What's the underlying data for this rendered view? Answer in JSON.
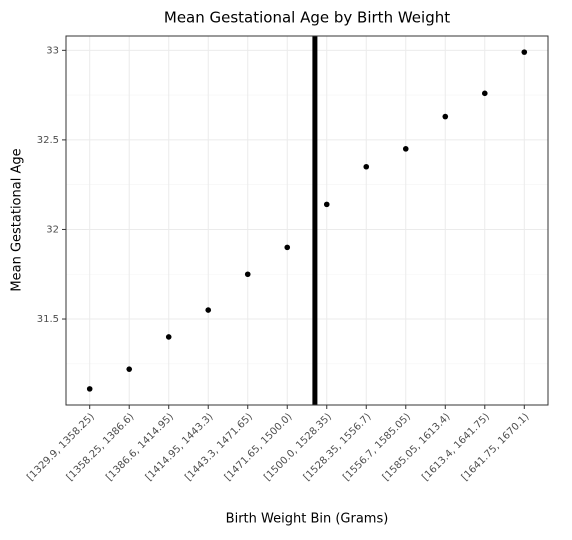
{
  "chart_data": {
    "type": "scatter",
    "title": "Mean Gestational Age by Birth Weight",
    "x_label": "Birth Weight Bin (Grams)",
    "y_label": "Mean Gestational Age",
    "categories": [
      "[1329.9, 1358.25)",
      "[1358.25, 1386.6)",
      "[1386.6, 1414.95)",
      "[1414.95, 1443.3)",
      "[1443.3, 1471.65)",
      "[1471.65, 1500.0)",
      "[1500.0, 1528.35)",
      "[1528.35, 1556.7)",
      "[1556.7, 1585.05)",
      "[1585.05, 1613.4)",
      "[1613.4, 1641.75)",
      "[1641.75, 1670.1)"
    ],
    "values": [
      31.11,
      31.22,
      31.4,
      31.55,
      31.75,
      31.9,
      32.14,
      32.35,
      32.45,
      32.63,
      32.76,
      32.99
    ],
    "color": "#000000",
    "ylim": [
      31.02,
      33.08
    ],
    "yticks": [
      31.5,
      32,
      32.5,
      33
    ],
    "minor_yticks": [
      31.25,
      31.75,
      32.25,
      32.75
    ],
    "grid": true,
    "vline_x": 6.7,
    "vline_color": "#000000"
  }
}
